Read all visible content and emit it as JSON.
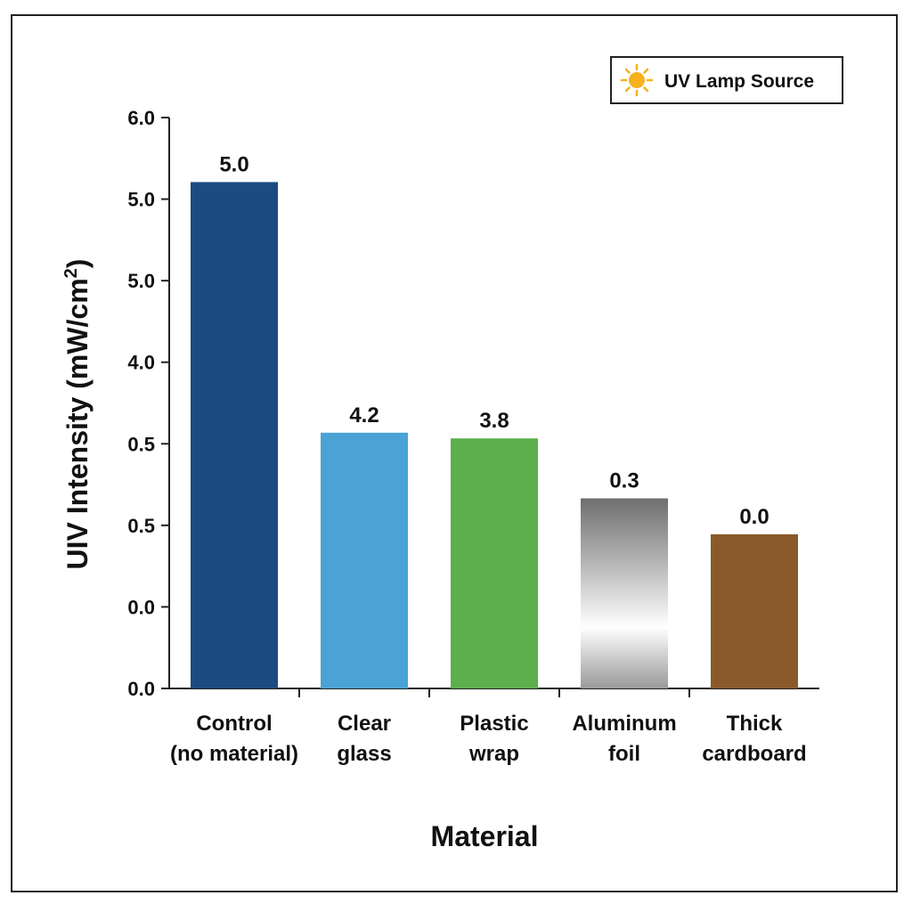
{
  "chart_data": {
    "type": "bar",
    "categories": [
      [
        "Control",
        "(no material)"
      ],
      [
        "Clear",
        "glass"
      ],
      [
        "Plastic",
        "wrap"
      ],
      [
        "Aluminum",
        "foil"
      ],
      [
        "Thick",
        "cardboard"
      ]
    ],
    "values": [
      5.0,
      4.2,
      3.8,
      0.3,
      0.0
    ],
    "value_labels": [
      "5.0",
      "4.2",
      "3.8",
      "0.3",
      "0.0"
    ],
    "bar_fractions": [
      0.887,
      0.448,
      0.438,
      0.333,
      0.27
    ],
    "bar_colors": [
      "#1c4b82",
      "#4aa3d4",
      "#5caf4c",
      "gradient-metal",
      "#8a5a2b"
    ],
    "y_tick_labels": [
      "0.0",
      "0.0",
      "0.5",
      "0.5",
      "4.0",
      "5.0",
      "5.0",
      "6.0"
    ],
    "xlabel": "Material",
    "ylabel": "UIV Intensity (mW/cm²)",
    "ylabel_parts": {
      "main": "UIV Intensity (mW/cm",
      "sup": "2",
      "end": ")"
    },
    "legend": {
      "text": "UV Lamp Source",
      "icon": "sun-icon",
      "position": "top-right",
      "icon_color": "#f5b21c"
    },
    "grid": false
  }
}
